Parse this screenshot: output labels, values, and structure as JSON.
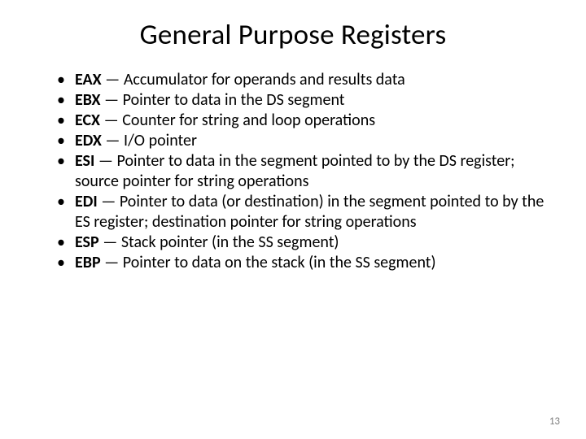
{
  "title": "General Purpose Registers",
  "registers": [
    {
      "name": "EAX",
      "desc": "Accumulator for operands and results data"
    },
    {
      "name": "EBX",
      "desc": "Pointer to data in the DS segment"
    },
    {
      "name": "ECX",
      "desc": "Counter for string and loop operations"
    },
    {
      "name": "EDX",
      "desc": "I/O pointer"
    },
    {
      "name": "ESI",
      "desc": "Pointer to data in the segment pointed to by the DS register; source pointer for string operations"
    },
    {
      "name": "EDI",
      "desc": "Pointer to data (or destination) in the segment pointed to by the ES register; destination pointer for string operations"
    },
    {
      "name": "ESP",
      "desc": "Stack pointer (in the SS segment)"
    },
    {
      "name": "EBP",
      "desc": "Pointer to data on the stack (in the SS segment)"
    }
  ],
  "separator": " — ",
  "page_number": "13",
  "style": {
    "background_color": "#ffffff",
    "title_fontsize": 35,
    "title_weight": 400,
    "body_fontsize": 20,
    "reg_name_weight": 700,
    "text_color": "#000000",
    "page_number_color": "#7f7f7f",
    "page_number_fontsize": 13,
    "font_family": "Calibri"
  }
}
